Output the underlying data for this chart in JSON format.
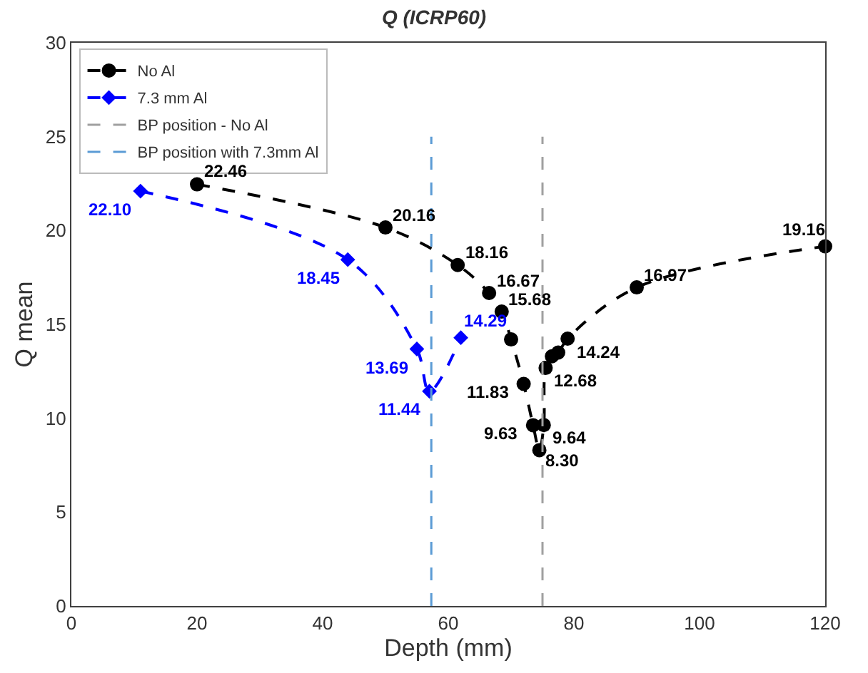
{
  "chart_data": {
    "type": "line",
    "title": "Q (ICRP60)",
    "xlabel": "Depth (mm)",
    "ylabel": "Q mean",
    "xlim": [
      0,
      120
    ],
    "xticks": [
      0,
      20,
      40,
      60,
      80,
      100,
      120
    ],
    "ylim": [
      0,
      30
    ],
    "yticks": [
      0,
      5,
      10,
      15,
      20,
      25,
      30
    ],
    "grid": false,
    "legend": "top left",
    "line_style": "dashed",
    "series": [
      {
        "name": "No Al",
        "color": "#000000",
        "marker": "circle",
        "x": [
          20,
          50,
          61.5,
          66.5,
          68.5,
          70,
          72,
          73.5,
          74.5,
          75.2,
          75.5,
          76.5,
          77.5,
          79,
          90,
          120
        ],
        "values": [
          22.46,
          20.16,
          18.16,
          16.67,
          15.68,
          14.2,
          11.83,
          9.63,
          8.3,
          9.64,
          12.68,
          13.3,
          13.5,
          14.24,
          16.97,
          19.16
        ],
        "value_labels": [
          "22.46",
          "20.16",
          "18.16",
          "16.67",
          "15.68",
          null,
          "11.83",
          "9.63",
          "8.30",
          "9.64",
          "12.68",
          null,
          null,
          "14.24",
          "16.97",
          "19.16"
        ]
      },
      {
        "name": "7.3 mm Al",
        "color": "#0000ff",
        "marker": "diamond",
        "x": [
          11,
          44,
          55,
          57,
          62
        ],
        "values": [
          22.1,
          18.45,
          13.69,
          11.44,
          14.29
        ],
        "value_labels": [
          "22.10",
          "18.45",
          "13.69",
          "11.44",
          "14.29"
        ]
      },
      {
        "name": "BP position - No Al",
        "color": "#a0a0a0",
        "marker": "none",
        "x": [
          75,
          75
        ],
        "values": [
          0,
          25
        ]
      },
      {
        "name": "BP position with 7.3mm Al",
        "color": "#5b9bd5",
        "marker": "none",
        "x": [
          57.3,
          57.3
        ],
        "values": [
          0,
          25
        ]
      }
    ]
  }
}
